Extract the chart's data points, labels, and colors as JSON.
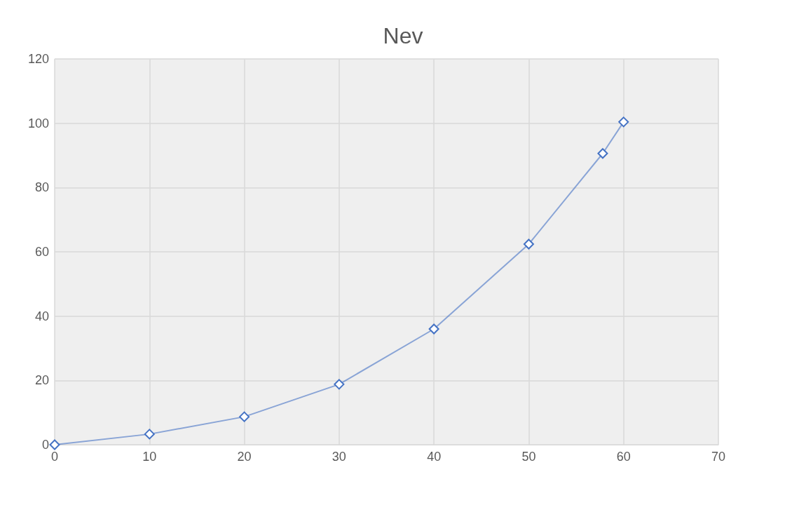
{
  "chart_data": {
    "type": "line",
    "title": "Nev",
    "x": [
      0,
      10,
      20,
      30,
      40,
      50,
      57.8,
      60
    ],
    "series": [
      {
        "color": "#4472c4",
        "values": [
          0,
          3.3,
          8.7,
          18.8,
          36,
          62.4,
          90.6,
          100.4
        ]
      }
    ],
    "xlim": [
      0,
      70
    ],
    "xticks": [
      0,
      10,
      20,
      30,
      40,
      50,
      60,
      70
    ],
    "ylim": [
      0,
      120
    ],
    "yticks": [
      0,
      20,
      40,
      60,
      80,
      100,
      120
    ],
    "grid": true,
    "marker": "diamond",
    "line_style": "solid"
  }
}
